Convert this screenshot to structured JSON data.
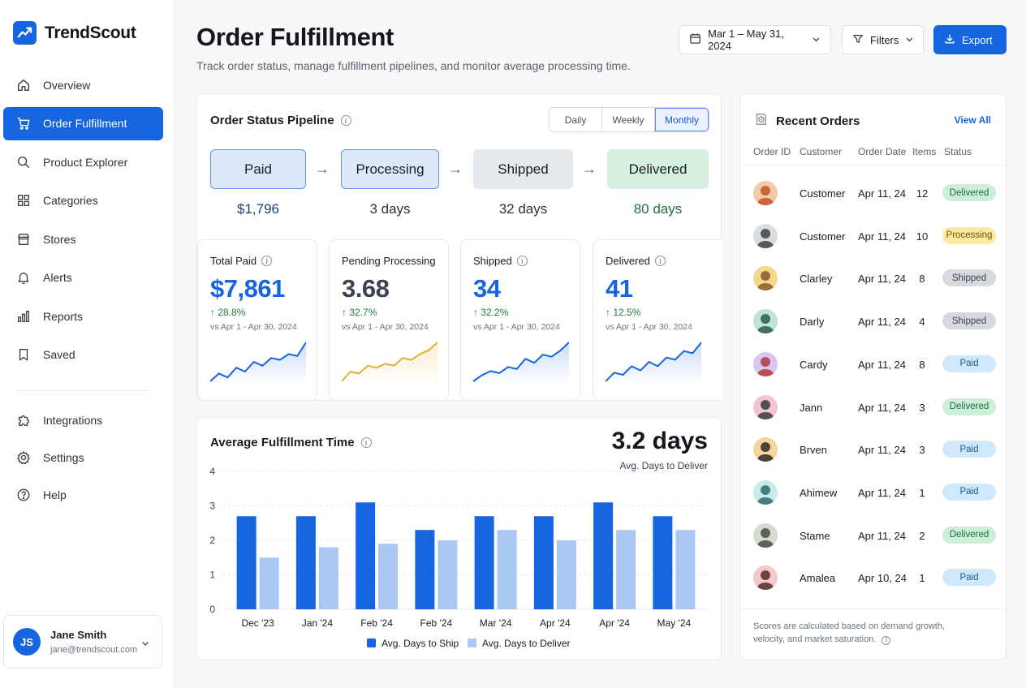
{
  "app": {
    "name": "TrendScout"
  },
  "sidebar": {
    "items": [
      {
        "label": "Overview",
        "icon": "home-icon",
        "active": false
      },
      {
        "label": "Order Fulfillment",
        "icon": "cart-icon",
        "active": true
      },
      {
        "label": "Product Explorer",
        "icon": "search-icon",
        "active": false
      },
      {
        "label": "Categories",
        "icon": "grid-icon",
        "active": false
      },
      {
        "label": "Stores",
        "icon": "store-icon",
        "active": false
      },
      {
        "label": "Alerts",
        "icon": "bell-icon",
        "active": false
      },
      {
        "label": "Reports",
        "icon": "bar-chart-icon",
        "active": false
      },
      {
        "label": "Saved",
        "icon": "bookmark-icon",
        "active": false
      }
    ],
    "secondary": [
      {
        "label": "Integrations",
        "icon": "puzzle-icon"
      },
      {
        "label": "Settings",
        "icon": "gear-icon"
      },
      {
        "label": "Help",
        "icon": "help-icon"
      }
    ],
    "user": {
      "initials": "JS",
      "name": "Jane Smith",
      "email": "jane@trendscout.com"
    }
  },
  "header": {
    "title": "Order Fulfillment",
    "subtitle": "Track order status, manage fulfillment pipelines, and monitor average processing time.",
    "date_range": "Mar 1 – May 31, 2024",
    "filters_label": "Filters",
    "export_label": "Export"
  },
  "pipeline": {
    "title": "Order Status Pipeline",
    "periods": [
      "Daily",
      "Weekly",
      "Monthly"
    ],
    "selected_period": "Monthly",
    "stages": [
      {
        "label": "Paid",
        "value": "$1,796"
      },
      {
        "label": "Processing",
        "value": "3 days"
      },
      {
        "label": "Shipped",
        "value": "32 days"
      },
      {
        "label": "Delivered",
        "value": "80 days"
      }
    ],
    "metrics": [
      {
        "label": "Total Paid",
        "value": "$7,861",
        "change": "↑ 28.8%",
        "period": "vs Apr 1 - Apr 30, 2024",
        "spark": [
          10,
          14,
          12,
          17,
          15,
          20,
          18,
          22,
          21,
          24,
          23,
          30
        ],
        "color": "#1565e0"
      },
      {
        "label": "Pending Processing",
        "value": "3.68",
        "change": "↑ 32.7%",
        "period": "vs Apr 1 - Apr 30, 2024",
        "spark": [
          8,
          13,
          12,
          16,
          15,
          17,
          16,
          20,
          19,
          22,
          24,
          28
        ],
        "color": "#e0b030"
      },
      {
        "label": "Shipped",
        "value": "34",
        "change": "↑ 32.2%",
        "period": "vs Apr 1 - Apr 30, 2024",
        "spark": [
          9,
          12,
          14,
          13,
          16,
          15,
          20,
          18,
          22,
          21,
          24,
          28
        ],
        "color": "#1565e0"
      },
      {
        "label": "Delivered",
        "value": "41",
        "change": "↑ 12.5%",
        "period": "vs Apr 1 - Apr 30, 2024",
        "spark": [
          10,
          14,
          13,
          17,
          15,
          19,
          17,
          21,
          20,
          24,
          23,
          28
        ],
        "color": "#1565e0"
      }
    ]
  },
  "fulfillment": {
    "title": "Average Fulfillment Time",
    "big_value": "3.2 days",
    "big_label": "Avg. Days to Deliver"
  },
  "chart_data": {
    "type": "bar",
    "categories": [
      "Dec '23",
      "Jan '24",
      "Feb '24",
      "Feb '24",
      "Mar '24",
      "Apr '24",
      "Apr '24",
      "May '24"
    ],
    "series": [
      {
        "name": "Avg. Days to Ship",
        "values": [
          2.7,
          2.7,
          3.1,
          2.3,
          2.7,
          2.7,
          3.1,
          2.7
        ],
        "color": "#1565e0"
      },
      {
        "name": "Avg. Days to Deliver",
        "values": [
          1.5,
          1.8,
          1.9,
          2.0,
          2.3,
          2.0,
          2.3,
          2.3
        ],
        "color": "#a9c8f3"
      }
    ],
    "ylim": [
      0,
      4
    ],
    "yticks": [
      "0",
      "1",
      "2",
      "3",
      "4"
    ],
    "grid": true,
    "legend": "bottom"
  },
  "orders": {
    "title": "Recent Orders",
    "view_all": "View All",
    "columns": [
      "Order ID",
      "Customer",
      "Order Date",
      "Items",
      "Status"
    ],
    "rows": [
      {
        "customer": "Customer",
        "date": "Apr 11, 24",
        "items": "12",
        "status": "Delivered"
      },
      {
        "customer": "Customer",
        "date": "Apr 11, 24",
        "items": "10",
        "status": "Processing"
      },
      {
        "customer": "Clarley",
        "date": "Apr 11, 24",
        "items": "8",
        "status": "Shipped"
      },
      {
        "customer": "Darly",
        "date": "Apr 11, 24",
        "items": "4",
        "status": "Shipped"
      },
      {
        "customer": "Cardy",
        "date": "Apr 11, 24",
        "items": "8",
        "status": "Paid"
      },
      {
        "customer": "Jann",
        "date": "Apr 11, 24",
        "items": "3",
        "status": "Delivered"
      },
      {
        "customer": "Brven",
        "date": "Apr 11, 24",
        "items": "3",
        "status": "Paid"
      },
      {
        "customer": "Ahimew",
        "date": "Apr 11, 24",
        "items": "1",
        "status": "Paid"
      },
      {
        "customer": "Stame",
        "date": "Apr 11, 24",
        "items": "2",
        "status": "Delivered"
      },
      {
        "customer": "Amalea",
        "date": "Apr 10, 24",
        "items": "1",
        "status": "Paid"
      }
    ],
    "footnote": "Scores are calculated based on demand growth, velocity, and market saturation."
  }
}
